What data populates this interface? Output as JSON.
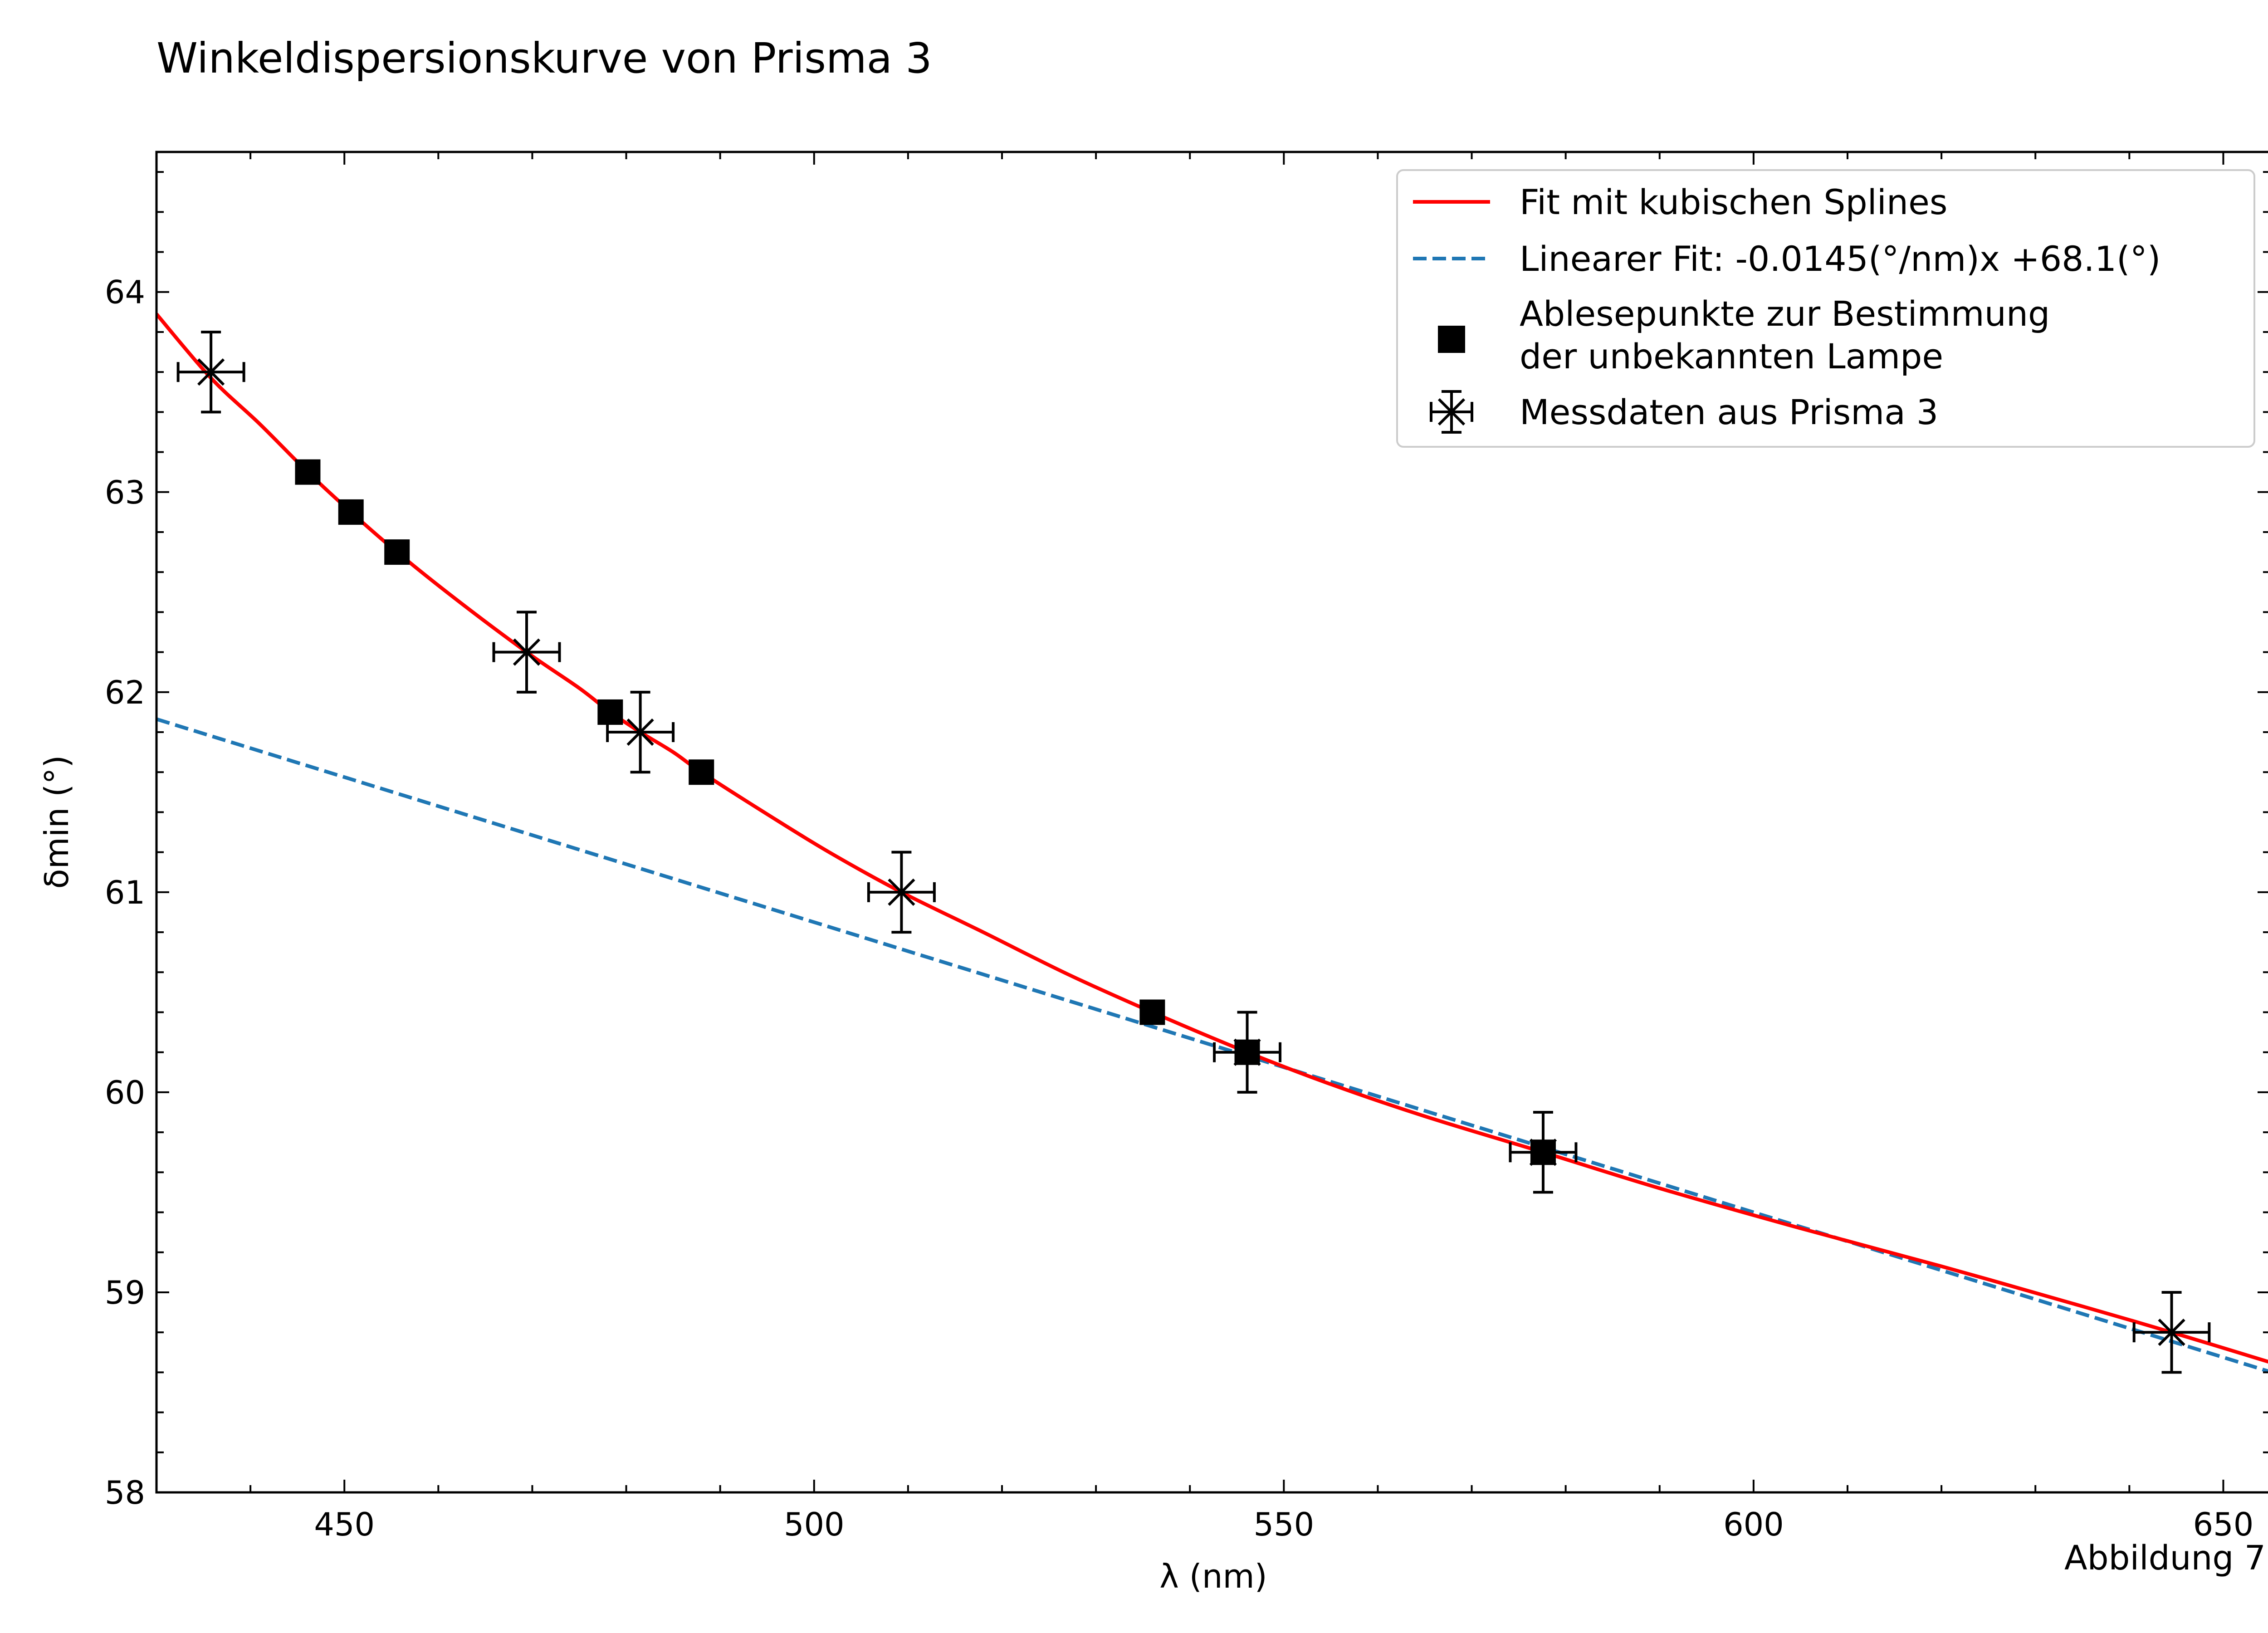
{
  "chart_data": {
    "type": "scatter",
    "title": "Winkeldispersionskurve von Prisma 3",
    "xlabel": "λ (nm)",
    "ylabel": "δmin (°)",
    "xlim": [
      430,
      655
    ],
    "ylim": [
      58,
      64.7
    ],
    "x_ticks": [
      450,
      500,
      550,
      600,
      650
    ],
    "y_ticks": [
      58,
      59,
      60,
      61,
      62,
      63,
      64
    ],
    "grid": false,
    "legend_position": "top-right",
    "footnote": "Abbildung 7",
    "series": [
      {
        "name": "Fit mit kubischen Splines",
        "kind": "line",
        "color": "#ff0000",
        "x": [
          430,
          435.8,
          441,
          446.1,
          450.7,
          455.6,
          462,
          469.4,
          475,
          478.3,
          481.5,
          485,
          488,
          495,
          501.6,
          509.3,
          518,
          527,
          536,
          546.1,
          555,
          565,
          577.6,
          590,
          605,
          620,
          635,
          644.5,
          655
        ],
        "y": [
          63.89,
          63.57,
          63.34,
          63.1,
          62.9,
          62.7,
          62.46,
          62.2,
          62.02,
          61.9,
          61.8,
          61.7,
          61.6,
          61.39,
          61.2,
          61.0,
          60.8,
          60.59,
          60.4,
          60.2,
          60.04,
          59.88,
          59.7,
          59.52,
          59.32,
          59.13,
          58.93,
          58.8,
          58.65
        ]
      },
      {
        "name": "Linearer Fit:  -0.0145(°/nm)x +68.1(°)",
        "kind": "dashed-line",
        "color": "#1f77b4",
        "x": [
          430,
          655
        ],
        "y": [
          61.865,
          58.6025
        ]
      },
      {
        "name": "Ablesepunkte zur Bestimmung der unbekannten Lampe",
        "legend_lines": [
          "Ablesepunkte zur Bestimmung",
          "der unbekannten Lampe"
        ],
        "kind": "square-markers",
        "color": "#000000",
        "x": [
          446.1,
          450.7,
          455.6,
          478.3,
          488.0,
          536.0,
          546.1,
          577.6
        ],
        "y": [
          63.1,
          62.9,
          62.7,
          61.9,
          61.6,
          60.4,
          60.2,
          59.7
        ]
      },
      {
        "name": "Messdaten aus Prisma 3",
        "kind": "x-markers-errorbars",
        "color": "#000000",
        "x": [
          435.8,
          469.4,
          481.5,
          509.3,
          546.1,
          577.6,
          644.5
        ],
        "y": [
          63.6,
          62.2,
          61.8,
          61.0,
          60.2,
          59.7,
          58.8
        ],
        "x_error": [
          3.5,
          3.5,
          3.5,
          3.5,
          3.5,
          3.5,
          4.0
        ],
        "y_error": [
          0.2,
          0.2,
          0.2,
          0.2,
          0.2,
          0.2,
          0.2
        ]
      }
    ]
  }
}
